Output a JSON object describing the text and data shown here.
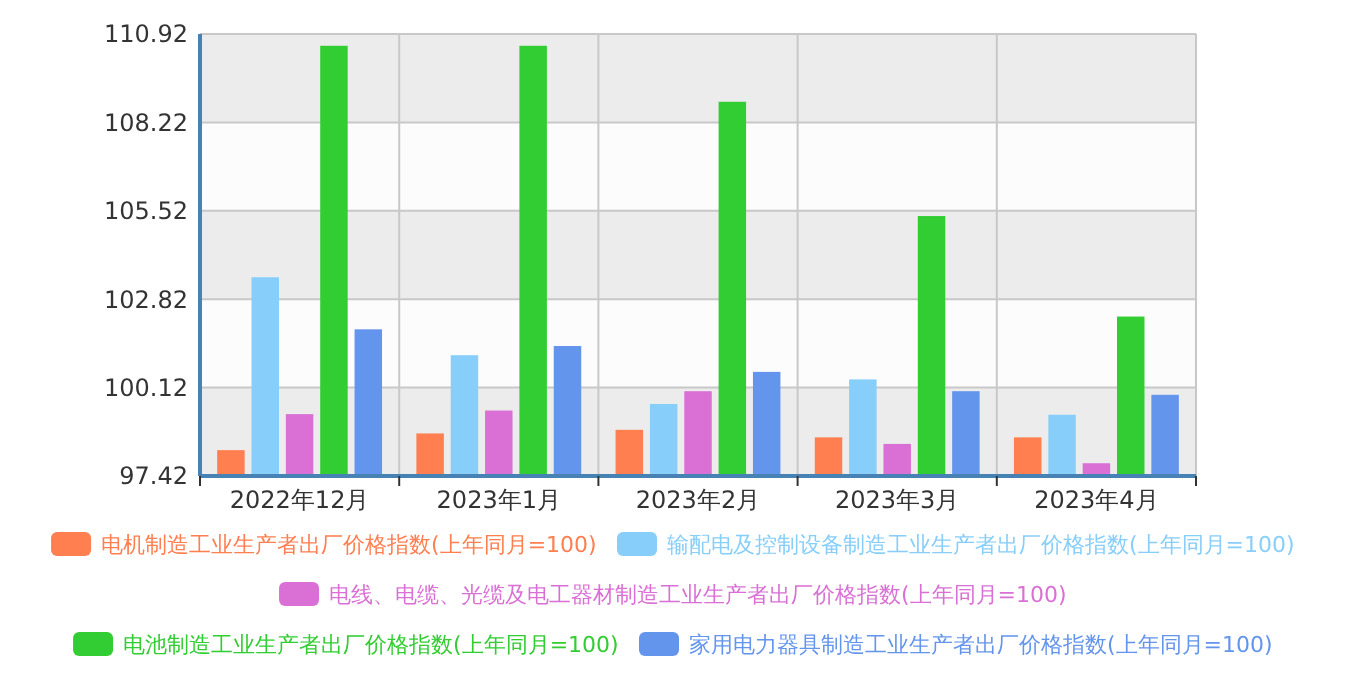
{
  "chart_data": {
    "type": "bar",
    "categories": [
      "2022年12月",
      "2023年1月",
      "2023年2月",
      "2023年3月",
      "2023年4月"
    ],
    "ylim": [
      97.42,
      110.92
    ],
    "yticks": [
      97.42,
      100.12,
      102.82,
      105.52,
      108.22,
      110.92
    ],
    "grid": true,
    "legend": "bottom",
    "series": [
      {
        "name": "电机制造工业生产者出厂价格指数(上年同月=100)",
        "color": "#ff7f50",
        "values": [
          98.21,
          98.72,
          98.83,
          98.6,
          98.6
        ]
      },
      {
        "name": "输配电及控制设备制造工业生产者出厂价格指数(上年同月=100)",
        "color": "#87cefa",
        "values": [
          103.49,
          101.11,
          99.62,
          100.37,
          99.29
        ]
      },
      {
        "name": "电线、电缆、光缆及电工器材制造工业生产者出厂价格指数(上年同月=100)",
        "color": "#da70d6",
        "values": [
          99.31,
          99.42,
          100.01,
          98.4,
          97.81
        ]
      },
      {
        "name": "电池制造工业生产者出厂价格指数(上年同月=100)",
        "color": "#32cd32",
        "values": [
          110.56,
          110.56,
          108.85,
          105.36,
          102.29
        ]
      },
      {
        "name": "家用电力器具制造工业生产者出厂价格指数(上年同月=100)",
        "color": "#6495ed",
        "values": [
          101.9,
          101.39,
          100.6,
          100.01,
          99.9
        ]
      }
    ]
  }
}
